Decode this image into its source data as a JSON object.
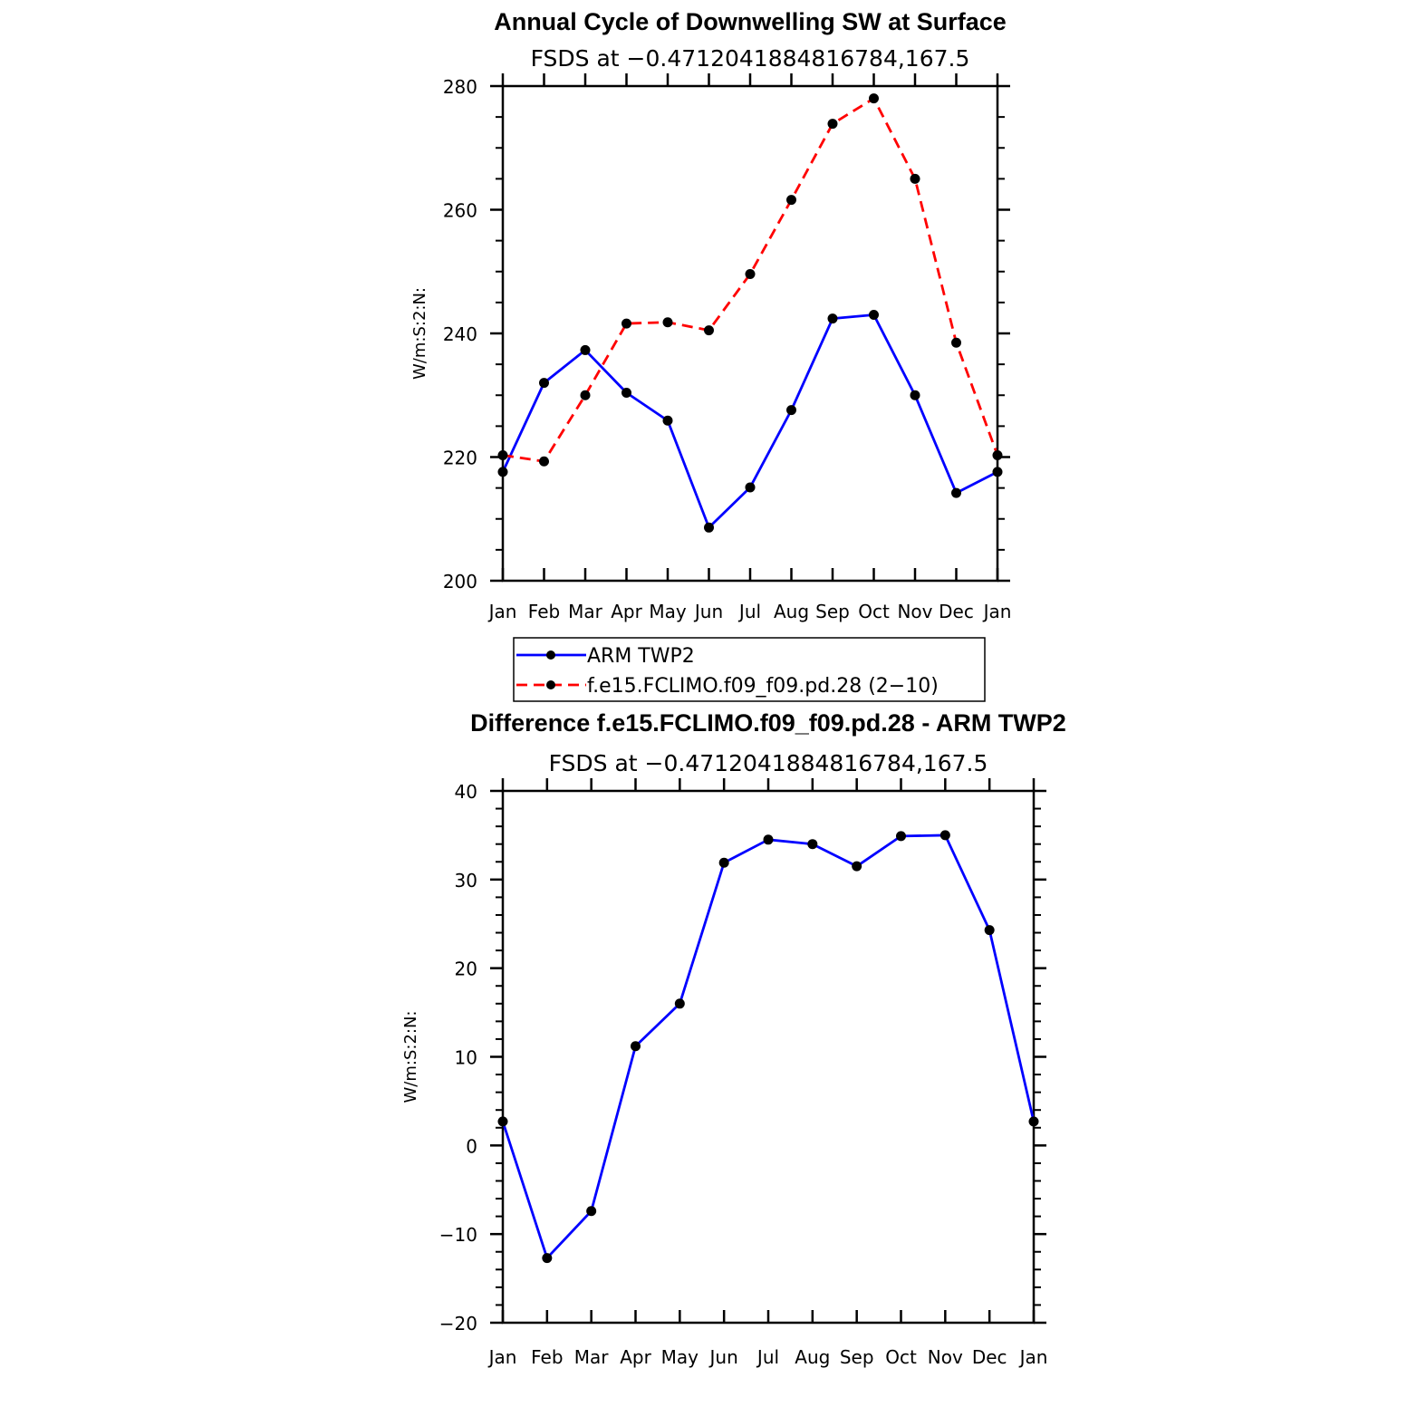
{
  "chart_data": [
    {
      "type": "line",
      "title": "Annual Cycle of Downwelling SW at Surface",
      "subtitle": "FSDS at −0.4712041884816784,167.5",
      "ylabel": "W/m:S:2:N:",
      "xlabel": "",
      "categories": [
        "Jan",
        "Feb",
        "Mar",
        "Apr",
        "May",
        "Jun",
        "Jul",
        "Aug",
        "Sep",
        "Oct",
        "Nov",
        "Dec",
        "Jan"
      ],
      "ylim": [
        200,
        280
      ],
      "yticks": [
        "200",
        "220",
        "240",
        "260",
        "280"
      ],
      "series": [
        {
          "name": "ARM TWP2",
          "color": "#0000ff",
          "dash": "solid",
          "values": [
            217.6,
            232.0,
            237.3,
            230.4,
            225.9,
            208.6,
            215.1,
            227.6,
            242.4,
            243.0,
            230.0,
            214.2,
            217.6
          ]
        },
        {
          "name": "f.e15.FCLIMO.f09_f09.pd.28 (2−10)",
          "color": "#ff0000",
          "dash": "dashed",
          "values": [
            220.3,
            219.3,
            230.0,
            241.6,
            241.8,
            240.5,
            249.6,
            261.6,
            273.9,
            278.0,
            265.0,
            238.5,
            220.3
          ]
        }
      ],
      "legend": {
        "placement": "below",
        "entries": [
          "ARM TWP2",
          "f.e15.FCLIMO.f09_f09.pd.28 (2−10)"
        ]
      }
    },
    {
      "type": "line",
      "title": "Difference f.e15.FCLIMO.f09_f09.pd.28 - ARM TWP2",
      "subtitle": "FSDS at −0.4712041884816784,167.5",
      "ylabel": "W/m:S:2:N:",
      "xlabel": "",
      "categories": [
        "Jan",
        "Feb",
        "Mar",
        "Apr",
        "May",
        "Jun",
        "Jul",
        "Aug",
        "Sep",
        "Oct",
        "Nov",
        "Dec",
        "Jan"
      ],
      "ylim": [
        -20,
        40
      ],
      "yticks": [
        "−20",
        "−10",
        "0",
        "10",
        "20",
        "30",
        "40"
      ],
      "series": [
        {
          "name": "Difference",
          "color": "#0000ff",
          "dash": "solid",
          "values": [
            2.7,
            -12.7,
            -7.4,
            11.2,
            16.0,
            31.9,
            34.5,
            34.0,
            31.5,
            34.9,
            35.0,
            24.3,
            2.7
          ]
        }
      ]
    }
  ]
}
